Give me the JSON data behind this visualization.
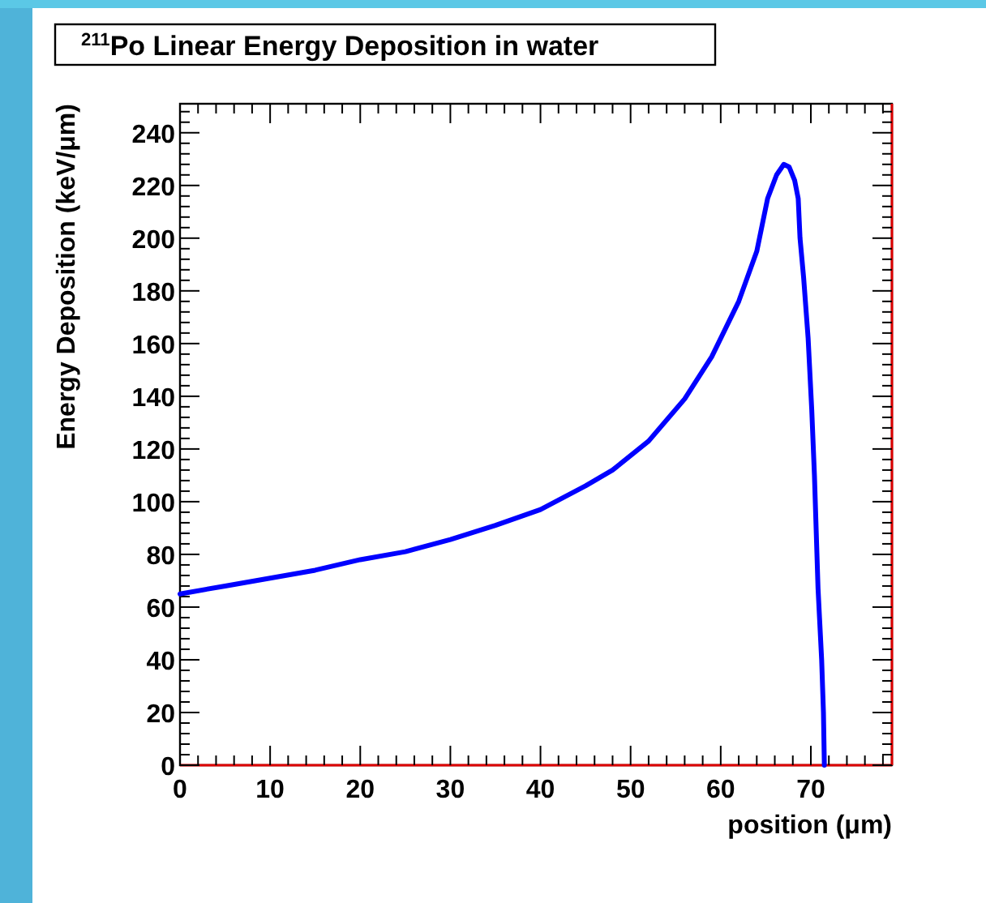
{
  "chart_data": {
    "type": "line",
    "title": "$^{211}$Po Linear Energy Deposition in water",
    "xlabel": "position (μm)",
    "ylabel": "Energy Deposition (keV/μm)",
    "x": [
      0,
      5,
      10,
      15,
      20,
      25,
      30,
      35,
      40,
      45,
      48,
      52,
      56,
      59,
      62,
      64,
      65.2,
      66.2,
      67,
      67.6,
      68.2,
      68.6,
      68.8,
      69.2,
      69.7,
      70.1,
      70.4,
      70.8,
      71.2,
      71.4,
      71.5
    ],
    "series": [
      {
        "color": "#0000ff",
        "values": [
          65,
          68,
          71,
          74,
          78,
          81,
          85.6,
          91,
          97,
          106,
          112,
          123,
          139,
          155,
          176,
          195,
          215,
          224,
          228,
          227,
          222,
          215,
          200,
          185,
          162,
          135,
          110,
          67,
          40,
          20,
          0
        ]
      }
    ],
    "xlim": [
      0,
      79
    ],
    "ylim": [
      0,
      251
    ],
    "xticks": [
      0,
      10,
      20,
      30,
      40,
      50,
      60,
      70
    ],
    "yticks": [
      0,
      20,
      40,
      60,
      80,
      100,
      120,
      140,
      160,
      180,
      200,
      220,
      240
    ],
    "grid": false,
    "line_style": "solid"
  }
}
